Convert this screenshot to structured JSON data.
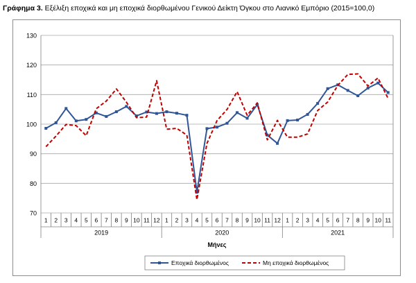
{
  "title": {
    "prefix": "Γράφημα 3.",
    "text": "Εξέλιξη εποχικά και μη εποχικά διορθωμένου Γενικού Δείκτη Όγκου στο Λιανικό Εμπόριο (2015=100,0)"
  },
  "chart_data": {
    "type": "line",
    "ylim": [
      70,
      130
    ],
    "yticks": [
      70,
      80,
      90,
      100,
      110,
      120,
      130
    ],
    "xlabel": "Μήνες",
    "ylabel": "",
    "grid": "horizontal",
    "legend_position": "bottom",
    "months": [
      "1",
      "2",
      "3",
      "4",
      "5",
      "6",
      "7",
      "8",
      "9",
      "10",
      "11",
      "12",
      "1",
      "2",
      "3",
      "4",
      "5",
      "6",
      "7",
      "8",
      "9",
      "10",
      "11",
      "12",
      "1",
      "2",
      "3",
      "4",
      "5",
      "6",
      "7",
      "8",
      "9",
      "10",
      "11"
    ],
    "years": [
      {
        "label": "2019",
        "count": 12
      },
      {
        "label": "2020",
        "count": 12
      },
      {
        "label": "2021",
        "count": 11
      }
    ],
    "series": [
      {
        "name": "Εποχικά διορθωμένος",
        "color": "#2f5597",
        "style": "solid",
        "marker": "square",
        "values": [
          98.6,
          100.5,
          105.3,
          101.1,
          101.6,
          103.8,
          102.6,
          104.2,
          106.0,
          102.8,
          104.1,
          103.6,
          104.2,
          103.7,
          103.0,
          77.0,
          98.5,
          99.0,
          100.3,
          103.9,
          102.0,
          106.6,
          96.3,
          93.5,
          101.2,
          101.4,
          103.3,
          107.0,
          112.0,
          113.3,
          111.4,
          109.6,
          112.2,
          113.9,
          110.7
        ]
      },
      {
        "name": "Μη εποχικά διορθωμένος",
        "color": "#c00000",
        "style": "dashed",
        "marker": "none",
        "values": [
          92.4,
          96.0,
          99.9,
          99.5,
          96.1,
          105.2,
          107.8,
          111.9,
          107.4,
          102.2,
          102.4,
          114.7,
          98.3,
          98.6,
          96.3,
          74.5,
          93.5,
          101.2,
          105.0,
          111.0,
          103.0,
          107.2,
          94.7,
          101.3,
          95.6,
          95.6,
          96.7,
          104.6,
          107.5,
          113.1,
          116.8,
          117.0,
          112.9,
          115.6,
          108.7
        ]
      }
    ]
  }
}
